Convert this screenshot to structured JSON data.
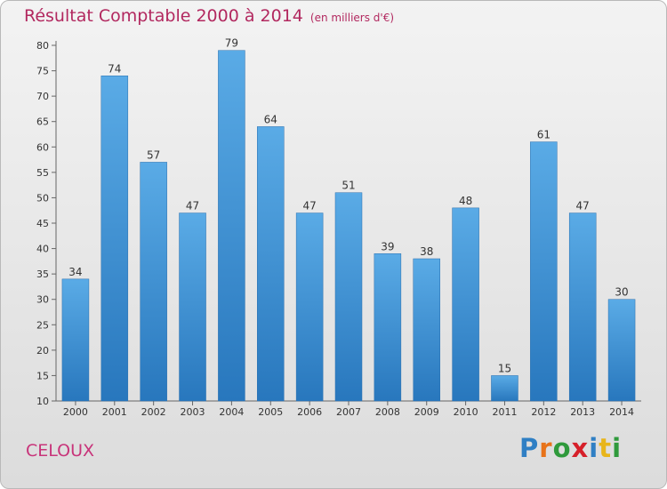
{
  "header": {
    "title": "Résultat Comptable 2000 à 2014",
    "subtitle": "(en milliers d'€)"
  },
  "footer": {
    "commune": "CELOUX",
    "logo_letters": [
      {
        "ch": "P",
        "color": "#2f7fc4"
      },
      {
        "ch": "r",
        "color": "#e8731a"
      },
      {
        "ch": "o",
        "color": "#2f9a3c"
      },
      {
        "ch": "x",
        "color": "#d6202a"
      },
      {
        "ch": "i",
        "color": "#2f7fc4"
      },
      {
        "ch": "t",
        "color": "#e8b51a"
      },
      {
        "ch": "i",
        "color": "#2f9a3c"
      }
    ]
  },
  "colors": {
    "bar_top": "#5aabe6",
    "bar_bottom": "#2877bd",
    "accent": "#b2285f"
  },
  "chart_data": {
    "type": "bar",
    "title": "Résultat Comptable 2000 à 2014",
    "subtitle": "(en milliers d'€)",
    "categories": [
      "2000",
      "2001",
      "2002",
      "2003",
      "2004",
      "2005",
      "2006",
      "2007",
      "2008",
      "2009",
      "2010",
      "2011",
      "2012",
      "2013",
      "2014"
    ],
    "values": [
      34,
      74,
      57,
      47,
      79,
      64,
      47,
      51,
      39,
      38,
      48,
      15,
      61,
      47,
      30
    ],
    "ylim": [
      10,
      80
    ],
    "yticks": [
      10,
      15,
      20,
      25,
      30,
      35,
      40,
      45,
      50,
      55,
      60,
      65,
      70,
      75,
      80
    ],
    "grid": false,
    "legend": "none"
  }
}
